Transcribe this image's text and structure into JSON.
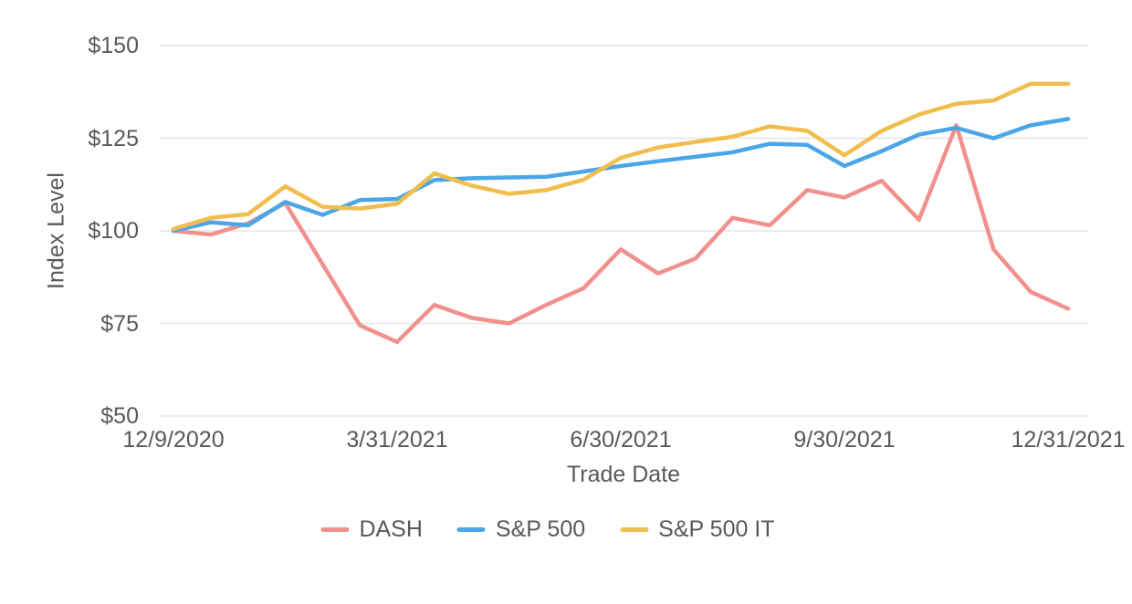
{
  "chart_data": {
    "type": "line",
    "title": "",
    "xlabel": "Trade Date",
    "ylabel": "Index Level",
    "x_tick_labels": [
      "12/9/2020",
      "3/31/2021",
      "6/30/2021",
      "9/30/2021",
      "12/31/2021"
    ],
    "x_tick_point_indices": [
      0,
      6,
      12,
      18,
      24
    ],
    "y_tick_labels": [
      "$150",
      "$125",
      "$100",
      "$75",
      "$50"
    ],
    "y_ticks": [
      150,
      125,
      100,
      75,
      50
    ],
    "ylim": [
      50,
      150
    ],
    "num_points": 25,
    "grid": "horizontal",
    "legend_position": "bottom",
    "series": [
      {
        "name": "DASH",
        "color": "#F1908C",
        "values": [
          100,
          99,
          102,
          107.5,
          91,
          74.5,
          70,
          80,
          76.5,
          75,
          80,
          84.5,
          95,
          88.5,
          92.5,
          103.5,
          101.5,
          111,
          109,
          113.5,
          103,
          128.5,
          95,
          83.5,
          79
        ]
      },
      {
        "name": "S&P 500",
        "color": "#4BA6E8",
        "values": [
          100,
          102.3,
          101.5,
          107.8,
          104.3,
          108.3,
          108.6,
          113.7,
          114.2,
          114.4,
          114.6,
          116,
          117.5,
          118.8,
          120,
          121.2,
          123.5,
          123.2,
          117.5,
          121.5,
          126,
          127.8,
          125,
          128.5,
          130.2
        ]
      },
      {
        "name": "S&P 500 IT",
        "color": "#F0BD4E",
        "values": [
          100.5,
          103.5,
          104.5,
          112,
          106.5,
          106,
          107.3,
          115.5,
          112.2,
          110,
          111,
          113.8,
          119.7,
          122.5,
          124,
          125.4,
          128.2,
          127,
          120.4,
          127,
          131.4,
          134.3,
          135.2,
          139.7,
          139.7
        ]
      }
    ],
    "colors": {
      "gridline": "#E6E6E6",
      "text": "#595959",
      "background": "#FFFFFF"
    }
  }
}
